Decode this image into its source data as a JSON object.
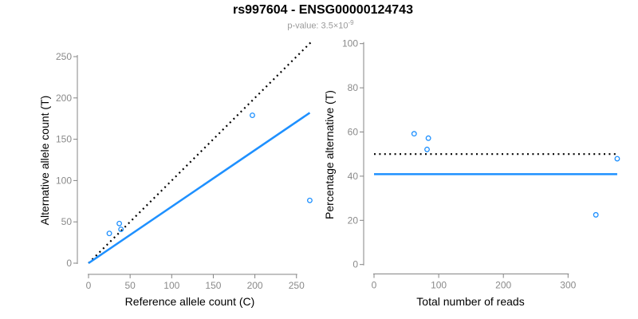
{
  "title": "rs997604 - ENSG00000124743",
  "subtitle": {
    "prefix": "p-value: 3.5×10",
    "exponent": "-9"
  },
  "colors": {
    "accent_blue": "#1E90FF",
    "point_blue": "#1E90FF",
    "dotted_black": "#000000",
    "axis_gray": "#848484",
    "tick_label_gray": "#8a8a8a",
    "title_black": "#000000",
    "subtitle_gray": "#9a9a9a"
  },
  "chart_data": [
    {
      "type": "scatter",
      "xlabel": "Reference allele count (C)",
      "ylabel": "Alternative allele count (T)",
      "xticks": [
        0,
        50,
        100,
        150,
        200,
        250
      ],
      "yticks": [
        0,
        50,
        100,
        150,
        200,
        250
      ],
      "xlim": [
        0,
        267
      ],
      "ylim": [
        0,
        268
      ],
      "grid": false,
      "points": [
        [
          25,
          36
        ],
        [
          37,
          48
        ],
        [
          39,
          41
        ],
        [
          197,
          179
        ],
        [
          266,
          76
        ]
      ],
      "lines": [
        {
          "name": "identity-line",
          "style": "dotted",
          "color": "#000000",
          "x": [
            0,
            267
          ],
          "y": [
            0,
            267
          ]
        },
        {
          "name": "fitted-ratio-line",
          "style": "solid",
          "color": "#1E90FF",
          "x": [
            0,
            266
          ],
          "y": [
            0,
            182
          ]
        }
      ]
    },
    {
      "type": "scatter",
      "xlabel": "Total number of reads",
      "ylabel": "Percentage alternative (T)",
      "xticks": [
        0,
        100,
        200,
        300
      ],
      "yticks": [
        0,
        20,
        40,
        60,
        80,
        100
      ],
      "xlim": [
        0,
        385
      ],
      "ylim": [
        0,
        100
      ],
      "grid": false,
      "points": [
        [
          62,
          59.2
        ],
        [
          84,
          57.2
        ],
        [
          82,
          52.1
        ],
        [
          376,
          47.9
        ],
        [
          343,
          22.5
        ]
      ],
      "lines": [
        {
          "name": "fifty-percent-line",
          "style": "dotted",
          "color": "#000000",
          "x": [
            0,
            375
          ],
          "y": [
            50,
            50
          ]
        },
        {
          "name": "mean-percentage-line",
          "style": "solid",
          "color": "#1E90FF",
          "x": [
            0,
            376
          ],
          "y": [
            40.9,
            40.9
          ]
        }
      ]
    }
  ]
}
